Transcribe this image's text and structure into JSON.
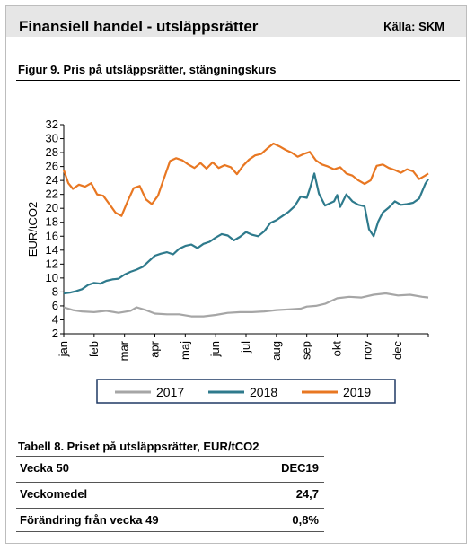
{
  "header": {
    "title": "Finansiell handel - utsläppsrätter",
    "source": "Källa: SKM"
  },
  "figure_title": "Figur 9. Pris på utsläppsrätter, stängningskurs",
  "table": {
    "title": "Tabell 8. Priset på utsläppsrätter, EUR/tCO2",
    "rows": [
      {
        "label": "Vecka 50",
        "value": "DEC19"
      },
      {
        "label": "Veckomedel",
        "value": "24,7"
      },
      {
        "label": "Förändring från vecka 49",
        "value": "0,8%"
      }
    ]
  },
  "chart_data": {
    "type": "line",
    "ylabel": "EUR/tCO2",
    "ylim": [
      2,
      32
    ],
    "yticks": [
      2,
      4,
      6,
      8,
      10,
      12,
      14,
      16,
      18,
      20,
      22,
      24,
      26,
      28,
      30,
      32
    ],
    "xlim": [
      0,
      12
    ],
    "categories": [
      "jan",
      "feb",
      "mar",
      "apr",
      "maj",
      "jun",
      "jul",
      "aug",
      "sep",
      "okt",
      "nov",
      "dec"
    ],
    "legend_position": "bottom",
    "series": [
      {
        "name": "2017",
        "color": "#a6a6a6",
        "x": [
          0,
          0.3,
          0.6,
          1,
          1.4,
          1.8,
          2.2,
          2.4,
          2.7,
          3,
          3.4,
          3.8,
          4.2,
          4.6,
          5,
          5.4,
          5.8,
          6.2,
          6.6,
          7,
          7.4,
          7.8,
          8,
          8.3,
          8.6,
          9,
          9.4,
          9.8,
          10.2,
          10.6,
          11,
          11.4,
          11.8,
          12
        ],
        "values": [
          5.8,
          5.4,
          5.2,
          5.1,
          5.3,
          5.0,
          5.3,
          5.8,
          5.4,
          4.9,
          4.8,
          4.8,
          4.5,
          4.5,
          4.7,
          5.0,
          5.1,
          5.1,
          5.2,
          5.4,
          5.5,
          5.6,
          5.9,
          6.0,
          6.3,
          7.1,
          7.3,
          7.2,
          7.6,
          7.8,
          7.5,
          7.6,
          7.3,
          7.2
        ]
      },
      {
        "name": "2018",
        "color": "#2e7a8c",
        "x": [
          0,
          0.2,
          0.4,
          0.6,
          0.8,
          1,
          1.2,
          1.4,
          1.6,
          1.8,
          2,
          2.2,
          2.4,
          2.6,
          2.8,
          3,
          3.2,
          3.4,
          3.6,
          3.8,
          4,
          4.2,
          4.4,
          4.6,
          4.8,
          5,
          5.2,
          5.4,
          5.6,
          5.8,
          6,
          6.2,
          6.4,
          6.6,
          6.8,
          7,
          7.2,
          7.4,
          7.6,
          7.8,
          8,
          8.1,
          8.25,
          8.4,
          8.6,
          8.75,
          8.9,
          9,
          9.1,
          9.3,
          9.5,
          9.7,
          9.9,
          10.05,
          10.2,
          10.35,
          10.5,
          10.7,
          10.9,
          11.1,
          11.3,
          11.5,
          11.7,
          11.9,
          12
        ],
        "values": [
          7.8,
          7.9,
          8.1,
          8.4,
          9.0,
          9.3,
          9.2,
          9.6,
          9.8,
          9.9,
          10.5,
          10.9,
          11.2,
          11.6,
          12.4,
          13.2,
          13.5,
          13.7,
          13.4,
          14.2,
          14.6,
          14.8,
          14.3,
          14.9,
          15.2,
          15.8,
          16.3,
          16.1,
          15.4,
          15.9,
          16.6,
          16.2,
          16.0,
          16.7,
          17.9,
          18.3,
          18.9,
          19.5,
          20.3,
          21.7,
          21.5,
          22.8,
          25.0,
          22.1,
          20.4,
          20.7,
          21.0,
          21.9,
          20.2,
          22.0,
          21.0,
          20.5,
          20.3,
          17.0,
          16.0,
          18.1,
          19.4,
          20.1,
          21.0,
          20.5,
          20.6,
          20.8,
          21.4,
          23.5,
          24.2
        ]
      },
      {
        "name": "2019",
        "color": "#e87722",
        "x": [
          0,
          0.15,
          0.3,
          0.5,
          0.7,
          0.9,
          1.1,
          1.3,
          1.5,
          1.7,
          1.9,
          2.1,
          2.3,
          2.5,
          2.7,
          2.9,
          3.1,
          3.3,
          3.5,
          3.7,
          3.9,
          4.1,
          4.3,
          4.5,
          4.7,
          4.9,
          5.1,
          5.3,
          5.5,
          5.7,
          5.9,
          6.1,
          6.3,
          6.5,
          6.7,
          6.9,
          7.1,
          7.3,
          7.5,
          7.7,
          7.9,
          8.1,
          8.3,
          8.5,
          8.7,
          8.9,
          9.1,
          9.3,
          9.5,
          9.7,
          9.9,
          10.1,
          10.3,
          10.5,
          10.7,
          10.9,
          11.1,
          11.3,
          11.5,
          11.7,
          11.9,
          12
        ],
        "values": [
          25.5,
          23.6,
          22.8,
          23.4,
          23.1,
          23.6,
          22.0,
          21.8,
          20.6,
          19.4,
          18.9,
          21.0,
          22.9,
          23.2,
          21.3,
          20.6,
          21.8,
          24.3,
          26.8,
          27.2,
          26.9,
          26.3,
          25.8,
          26.5,
          25.7,
          26.6,
          25.8,
          26.2,
          25.9,
          24.9,
          26.1,
          27.0,
          27.6,
          27.8,
          28.6,
          29.3,
          28.9,
          28.4,
          28.0,
          27.4,
          27.8,
          28.1,
          26.9,
          26.3,
          26.0,
          25.6,
          25.9,
          25.0,
          24.7,
          24.0,
          23.5,
          24.0,
          26.1,
          26.3,
          25.8,
          25.5,
          25.1,
          25.6,
          25.3,
          24.2,
          24.7,
          25.0
        ]
      }
    ]
  }
}
